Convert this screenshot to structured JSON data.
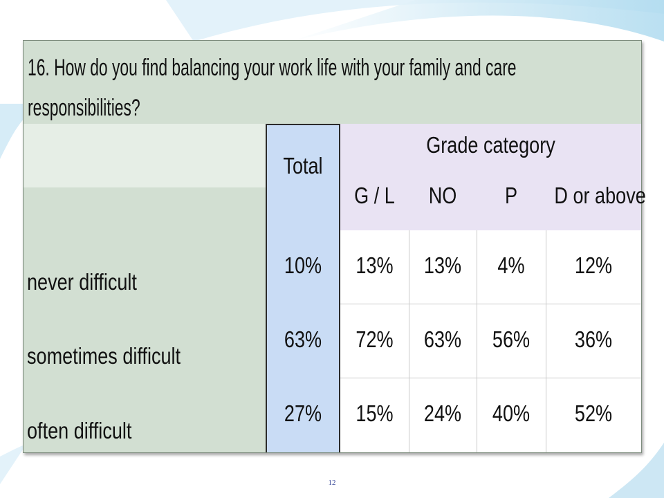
{
  "question": {
    "line1": "16. How do you find balancing your work life with your family and care",
    "line2": "responsibilities?"
  },
  "header": {
    "total": "Total",
    "grade_category": "Grade category",
    "grades": [
      "G / L",
      "NO",
      "P",
      "D or above"
    ]
  },
  "rows": [
    {
      "label": "never difficult",
      "total": "10%",
      "values": [
        "13%",
        "13%",
        "4%",
        "12%"
      ]
    },
    {
      "label": "sometimes difficult",
      "total": "63%",
      "values": [
        "72%",
        "63%",
        "56%",
        "36%"
      ]
    },
    {
      "label": "often difficult",
      "total": "27%",
      "values": [
        "15%",
        "24%",
        "40%",
        "52%"
      ]
    }
  ],
  "page_number": "12",
  "colors": {
    "question_bg": "#d2dfd2",
    "total_bg": "#c9dcf5",
    "grade_bg": "#e9e3f3",
    "accent_wave": "#b9def0"
  }
}
